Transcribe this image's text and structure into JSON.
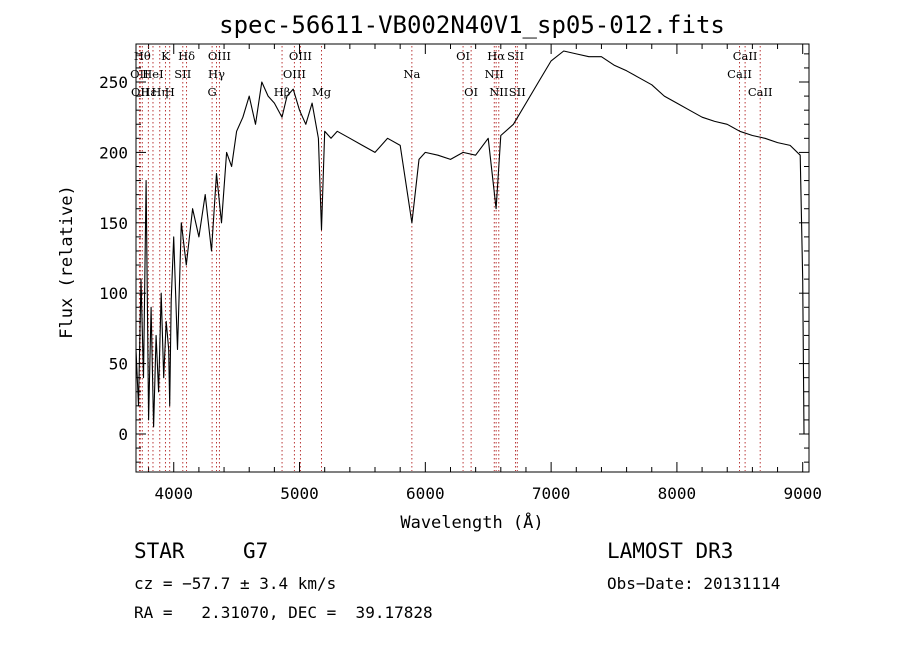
{
  "chart_data": {
    "type": "line",
    "title": "spec-56611-VB002N40V1_sp05-012.fits",
    "xlabel": "Wavelength (Å)",
    "ylabel": "Flux (relative)",
    "xlim": [
      3700,
      9050
    ],
    "ylim": [
      -27,
      277
    ],
    "x_ticks": [
      4000,
      5000,
      6000,
      7000,
      8000,
      9000
    ],
    "y_ticks": [
      0,
      50,
      100,
      150,
      200,
      250
    ],
    "grid": false,
    "series": [
      {
        "name": "spectrum",
        "x": [
          3700,
          3720,
          3740,
          3760,
          3780,
          3800,
          3820,
          3840,
          3860,
          3880,
          3900,
          3920,
          3940,
          3960,
          3968,
          3980,
          4000,
          4030,
          4060,
          4100,
          4150,
          4200,
          4250,
          4300,
          4340,
          4380,
          4420,
          4460,
          4500,
          4550,
          4600,
          4650,
          4700,
          4750,
          4800,
          4861,
          4900,
          4950,
          5000,
          5050,
          5100,
          5150,
          5175,
          5200,
          5250,
          5300,
          5400,
          5500,
          5600,
          5700,
          5800,
          5893,
          5950,
          6000,
          6100,
          6200,
          6300,
          6400,
          6500,
          6563,
          6600,
          6700,
          6800,
          6900,
          7000,
          7100,
          7200,
          7300,
          7400,
          7500,
          7600,
          7700,
          7800,
          7900,
          8000,
          8100,
          8200,
          8300,
          8400,
          8500,
          8600,
          8700,
          8800,
          8900,
          8980,
          9000,
          9010
        ],
        "values": [
          60,
          20,
          110,
          40,
          180,
          10,
          90,
          5,
          70,
          30,
          100,
          40,
          80,
          60,
          20,
          95,
          140,
          60,
          150,
          120,
          160,
          140,
          170,
          130,
          185,
          150,
          200,
          190,
          215,
          225,
          240,
          220,
          250,
          240,
          235,
          225,
          240,
          245,
          230,
          220,
          235,
          210,
          145,
          215,
          210,
          215,
          210,
          205,
          200,
          210,
          205,
          150,
          195,
          200,
          198,
          195,
          200,
          198,
          210,
          160,
          212,
          220,
          235,
          250,
          265,
          272,
          270,
          268,
          268,
          262,
          258,
          253,
          248,
          240,
          235,
          230,
          225,
          222,
          220,
          215,
          212,
          210,
          207,
          205,
          198,
          110,
          0
        ]
      }
    ],
    "lines": [
      {
        "x": 3727,
        "label": "OII",
        "row": 1
      },
      {
        "x": 3734,
        "label": "OII",
        "row": 2
      },
      {
        "x": 3750,
        "label": "Hθ",
        "row": 0
      },
      {
        "x": 3798,
        "label": "Hε",
        "row": 2
      },
      {
        "x": 3835,
        "label": "HeI",
        "row": 1
      },
      {
        "x": 3889,
        "label": "Hη",
        "row": 2
      },
      {
        "x": 3934,
        "label": "K",
        "row": 0
      },
      {
        "x": 3968,
        "label": "H",
        "row": 2
      },
      {
        "x": 4072,
        "label": "SII",
        "row": 1
      },
      {
        "x": 4102,
        "label": "Hδ",
        "row": 0
      },
      {
        "x": 4305,
        "label": "G",
        "row": 2
      },
      {
        "x": 4340,
        "label": "Hγ",
        "row": 1
      },
      {
        "x": 4363,
        "label": "OIII",
        "row": 0
      },
      {
        "x": 4861,
        "label": "Hβ",
        "row": 2
      },
      {
        "x": 4959,
        "label": "OIII",
        "row": 1
      },
      {
        "x": 5007,
        "label": "OIII",
        "row": 0
      },
      {
        "x": 5175,
        "label": "Mg",
        "row": 2
      },
      {
        "x": 5893,
        "label": "Na",
        "row": 1
      },
      {
        "x": 6300,
        "label": "OI",
        "row": 0
      },
      {
        "x": 6364,
        "label": "OI",
        "row": 2
      },
      {
        "x": 6548,
        "label": "NII",
        "row": 1
      },
      {
        "x": 6563,
        "label": "Hα",
        "row": 0
      },
      {
        "x": 6584,
        "label": "NII",
        "row": 2
      },
      {
        "x": 6717,
        "label": "SII",
        "row": 0
      },
      {
        "x": 6731,
        "label": "SII",
        "row": 2
      },
      {
        "x": 8498,
        "label": "CaII",
        "row": 1
      },
      {
        "x": 8542,
        "label": "CaII",
        "row": 0
      },
      {
        "x": 8662,
        "label": "CaII",
        "row": 2
      }
    ]
  },
  "info": {
    "class_label": "STAR",
    "subclass": "G7",
    "survey": "LAMOST DR3",
    "cz": "cz = −57.7 ± 3.4 km/s",
    "obs_date": "Obs−Date: 20131114",
    "radec": "RA =   2.31070, DEC =  39.17828"
  }
}
